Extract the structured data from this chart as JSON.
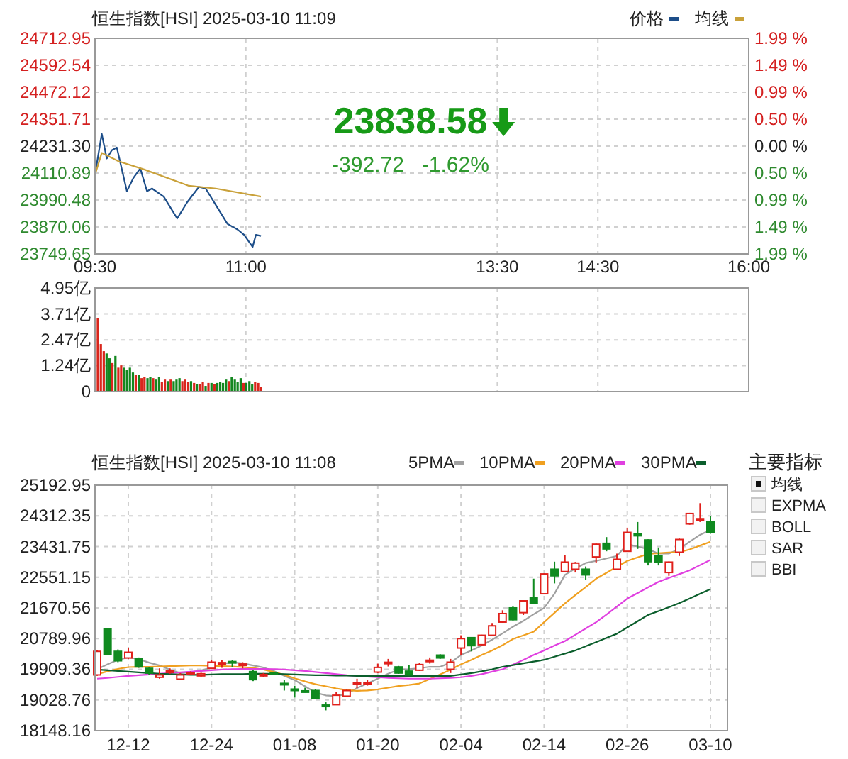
{
  "chart_data": [
    {
      "type": "line",
      "title": "恒生指数[HSI] 2025-03-10 11:09",
      "legend": "top right",
      "grid": true,
      "xlim": [
        9.5,
        16
      ],
      "xticks": [
        {
          "value": 9.5,
          "label": "09:30"
        },
        {
          "value": 11,
          "label": "11:00"
        },
        {
          "value": 13.5,
          "label": "13:30"
        },
        {
          "value": 14.5,
          "label": "14:30"
        },
        {
          "value": 16,
          "label": "16:00"
        }
      ],
      "ylim": [
        23749.65,
        24712.95
      ],
      "yticks": [
        23749.65,
        23870.06,
        23990.48,
        24110.89,
        {
          "value": 24231.3,
          "label": "24231.30"
        },
        24351.71,
        24472.12,
        24592.54,
        24712.95
      ],
      "y2lim": [
        -1.99,
        1.99
      ],
      "y2ticks": [
        {
          "value": -1.99,
          "label": "1.99 %"
        },
        {
          "value": -1.49,
          "label": "1.49 %"
        },
        {
          "value": -0.99,
          "label": "0.99 %"
        },
        {
          "value": -0.5,
          "label": "0.50 %"
        },
        {
          "value": 0,
          "label": "0.00 %"
        },
        {
          "value": 0.5,
          "label": "0.50 %"
        },
        {
          "value": 0.99,
          "label": "0.99 %"
        },
        {
          "value": 1.49,
          "label": "1.49 %"
        },
        {
          "value": 1.99,
          "label": "1.99 %"
        }
      ],
      "annotations": [
        "23838.58",
        "-392.72",
        "-1.62%"
      ],
      "series": [
        {
          "name": "价格",
          "color": "#1d4e89",
          "x": [
            9.5,
            9.567,
            9.617,
            9.667,
            9.717,
            9.817,
            9.883,
            9.95,
            10.017,
            10.067,
            10.183,
            10.317,
            10.417,
            10.533,
            10.6,
            10.717,
            10.817,
            10.917,
            10.983,
            11.067,
            11.1,
            11.15
          ],
          "values": [
            24103,
            24286,
            24176,
            24213,
            24225,
            24030,
            24090,
            24132,
            24030,
            24042,
            24006,
            23908,
            23981,
            24049,
            24042,
            23957,
            23884,
            23859,
            23835,
            23781,
            23835,
            23830
          ]
        },
        {
          "name": "均线",
          "color": "#c9a13a",
          "x": [
            9.5,
            9.567,
            9.733,
            9.983,
            10.433,
            10.7,
            11.15
          ],
          "values": [
            24103,
            24201,
            24164,
            24128,
            24054,
            24042,
            24006
          ]
        }
      ]
    },
    {
      "type": "bar",
      "grid": true,
      "tick_labels": "y",
      "xlim": [
        9.5,
        16
      ],
      "xticks": [
        9.5,
        11,
        13.5,
        14.5,
        16
      ],
      "ylim": [
        0,
        4.95
      ],
      "yticks": [
        0,
        {
          "value": 1.24,
          "label": "1.24亿"
        },
        {
          "value": 2.47,
          "label": "2.47亿"
        },
        {
          "value": 3.71,
          "label": "3.71亿"
        },
        {
          "value": 4.95,
          "label": "4.95亿"
        }
      ],
      "x": [
        9.5,
        9.528,
        9.558,
        9.587,
        9.615,
        9.645,
        9.673,
        9.703,
        9.732,
        9.76,
        9.79,
        9.818,
        9.847,
        9.877,
        9.905,
        9.935,
        9.963,
        9.992,
        10.022,
        10.05,
        10.078,
        10.108,
        10.137,
        10.165,
        10.195,
        10.223,
        10.253,
        10.282,
        10.31,
        10.34,
        10.368,
        10.397,
        10.427,
        10.455,
        10.485,
        10.513,
        10.542,
        10.572,
        10.6,
        10.628,
        10.658,
        10.687,
        10.717,
        10.745,
        10.773,
        10.803,
        10.832,
        10.86,
        10.89,
        10.918,
        10.948,
        10.977,
        11.005,
        11.035,
        11.063,
        11.092,
        11.122,
        11.15
      ],
      "values": [
        4.65,
        3.52,
        2.27,
        1.93,
        1.82,
        1.59,
        1.36,
        1.7,
        1.14,
        1.25,
        1.14,
        1.02,
        1.14,
        0.91,
        0.79,
        0.79,
        0.64,
        0.68,
        0.64,
        0.68,
        0.64,
        0.57,
        0.68,
        0.45,
        0.57,
        0.5,
        0.57,
        0.5,
        0.57,
        0.64,
        0.5,
        0.57,
        0.45,
        0.5,
        0.41,
        0.34,
        0.34,
        0.45,
        0.27,
        0.41,
        0.41,
        0.34,
        0.41,
        0.45,
        0.41,
        0.57,
        0.5,
        0.68,
        0.57,
        0.45,
        0.64,
        0.41,
        0.41,
        0.5,
        0.34,
        0.45,
        0.41,
        0.23
      ],
      "colors": [
        "#13871f",
        "#d9261c",
        "#d9261c",
        "#d9261c",
        "#13871f",
        "#13871f",
        "#d9261c",
        "#13871f",
        "#d9261c",
        "#d9261c",
        "#13871f",
        "#13871f",
        "#13871f",
        "#13871f",
        "#d9261c",
        "#13871f",
        "#d9261c",
        "#d9261c",
        "#13871f",
        "#13871f",
        "#d9261c",
        "#13871f",
        "#13871f",
        "#d9261c",
        "#d9261c",
        "#13871f",
        "#d9261c",
        "#13871f",
        "#13871f",
        "#13871f",
        "#d9261c",
        "#d9261c",
        "#d9261c",
        "#13871f",
        "#d9261c",
        "#13871f",
        "#d9261c",
        "#d9261c",
        "#13871f",
        "#d9261c",
        "#13871f",
        "#d9261c",
        "#13871f",
        "#13871f",
        "#13871f",
        "#13871f",
        "#d9261c",
        "#13871f",
        "#13871f",
        "#13871f",
        "#13871f",
        "#d9261c",
        "#13871f",
        "#13871f",
        "#13871f",
        "#d9261c",
        "#d9261c",
        "#d9261c"
      ]
    },
    {
      "type": "candlestick",
      "title": "恒生指数[HSI] 2025-03-10 11:08",
      "legend": "top right",
      "grid": true,
      "categories": [
        null,
        null,
        null,
        "12-12",
        null,
        null,
        null,
        null,
        null,
        null,
        null,
        "12-24",
        null,
        null,
        null,
        null,
        null,
        null,
        null,
        "01-08",
        null,
        null,
        null,
        null,
        null,
        null,
        null,
        "01-20",
        null,
        null,
        null,
        null,
        null,
        null,
        null,
        "02-04",
        null,
        null,
        null,
        null,
        null,
        null,
        null,
        "02-14",
        null,
        null,
        null,
        null,
        null,
        null,
        null,
        "02-26",
        null,
        null,
        null,
        null,
        null,
        null,
        null,
        "03-10"
      ],
      "ylim": [
        18148.16,
        25192.95
      ],
      "yticks": [
        18148.16,
        19028.76,
        19909.36,
        20789.96,
        21670.56,
        22551.15,
        23431.75,
        24312.35,
        25192.95
      ],
      "annotations": [
        "主要指标",
        "均线",
        "EXPMA",
        "BOLL",
        "SAR",
        "BBI"
      ],
      "ohlc": [
        [
          19747,
          20451,
          19720,
          20424
        ],
        [
          21061,
          21101,
          20316,
          20343
        ],
        [
          20424,
          20478,
          20113,
          20153
        ],
        [
          20234,
          20532,
          20207,
          20397
        ],
        [
          20207,
          20248,
          19950,
          19977
        ],
        [
          19936,
          19977,
          19747,
          19801
        ],
        [
          19679,
          19936,
          19638,
          19747
        ],
        [
          19840,
          19936,
          19774,
          19860
        ],
        [
          19625,
          19801,
          19597,
          19747
        ],
        [
          19790,
          19850,
          19760,
          19810
        ],
        [
          19720,
          19810,
          19700,
          19780
        ],
        [
          19936,
          20180,
          19936,
          20113
        ],
        [
          20070,
          20180,
          19950,
          20100
        ],
        [
          20130,
          20180,
          19977,
          20100
        ],
        [
          20040,
          20113,
          19936,
          20060
        ],
        [
          19842,
          19882,
          19570,
          19611
        ],
        [
          19720,
          19801,
          19680,
          19760
        ],
        [
          19800,
          19830,
          19740,
          19770
        ],
        [
          19503,
          19611,
          19299,
          19480
        ],
        [
          19340,
          19435,
          19096,
          19320
        ],
        [
          19290,
          19380,
          19240,
          19260
        ],
        [
          19299,
          19340,
          19055,
          19069
        ],
        [
          18880,
          18961,
          18730,
          18860
        ],
        [
          18893,
          19259,
          18893,
          19164
        ],
        [
          19137,
          19320,
          19120,
          19299
        ],
        [
          19490,
          19638,
          19367,
          19520
        ],
        [
          19500,
          19611,
          19440,
          19530
        ],
        [
          19828,
          20072,
          19800,
          19963
        ],
        [
          20080,
          20207,
          19990,
          20110
        ],
        [
          19977,
          20005,
          19780,
          19801
        ],
        [
          19855,
          20032,
          19730,
          19747
        ],
        [
          19882,
          20100,
          19860,
          20045
        ],
        [
          20140,
          20248,
          20072,
          20170
        ],
        [
          20316,
          20340,
          20210,
          20234
        ],
        [
          19909,
          20207,
          19801,
          20113
        ],
        [
          20519,
          20885,
          20316,
          20790
        ],
        [
          20817,
          20830,
          20424,
          20587
        ],
        [
          20614,
          20900,
          20590,
          20885
        ],
        [
          20885,
          21237,
          20860,
          21156
        ],
        [
          21264,
          21603,
          21250,
          21508
        ],
        [
          21671,
          21725,
          21310,
          21332
        ],
        [
          21535,
          21890,
          21467,
          21874
        ],
        [
          21969,
          22510,
          21780,
          21806
        ],
        [
          22077,
          22660,
          22060,
          22646
        ],
        [
          22781,
          22998,
          22375,
          22592
        ],
        [
          22714,
          23188,
          22700,
          22985
        ],
        [
          22781,
          22990,
          22687,
          22957
        ],
        [
          22781,
          22860,
          22483,
          22619
        ],
        [
          23134,
          23520,
          22957,
          23499
        ],
        [
          23526,
          23703,
          23296,
          23364
        ],
        [
          22781,
          23229,
          22770,
          23066
        ],
        [
          23296,
          23974,
          23280,
          23838
        ],
        [
          23790,
          24136,
          23364,
          23740
        ],
        [
          23621,
          23640,
          22890,
          22998
        ],
        [
          23161,
          23405,
          22890,
          22985
        ],
        [
          22687,
          23000,
          22592,
          22985
        ],
        [
          23269,
          23660,
          23161,
          23635
        ],
        [
          24082,
          24400,
          24060,
          24380
        ],
        [
          24220,
          24678,
          24136,
          24231
        ],
        [
          24150,
          24312,
          23798,
          23840
        ]
      ],
      "series": [
        {
          "type": "line",
          "name": "5PMA",
          "color": "#a0a0a0",
          "values": [
            19910,
            20050,
            20180,
            20250,
            20200,
            20100,
            20020,
            19900,
            19800,
            19820,
            19880,
            19960,
            20060,
            20110,
            20080,
            20020,
            19960,
            19860,
            19720,
            19600,
            19420,
            19240,
            19160,
            19140,
            19200,
            19370,
            19500,
            19640,
            19780,
            19900,
            19910,
            19940,
            19980,
            19980,
            20100,
            20320,
            20450,
            20590,
            20760,
            20940,
            21130,
            21300,
            21490,
            21670,
            22080,
            22620,
            22800,
            22960,
            23020,
            23090,
            23160,
            23500,
            23430,
            23360,
            23230,
            23230,
            23360,
            23570,
            23770,
            23910
          ]
        },
        {
          "type": "line",
          "name": "10PMA",
          "color": "#f0a020",
          "values": [
            19770,
            19850,
            19920,
            19970,
            19980,
            19980,
            19990,
            20000,
            20010,
            20020,
            20020,
            20010,
            20000,
            19990,
            19970,
            19950,
            19900,
            19830,
            19750,
            19650,
            19560,
            19480,
            19420,
            19360,
            19310,
            19290,
            19300,
            19330,
            19380,
            19430,
            19460,
            19500,
            19630,
            19760,
            19900,
            20050,
            20180,
            20320,
            20450,
            20600,
            20780,
            20880,
            20990,
            21260,
            21530,
            21800,
            22040,
            22270,
            22510,
            22680,
            22850,
            23020,
            23120,
            23220,
            23240,
            23260,
            23270,
            23350,
            23460,
            23570
          ]
        },
        {
          "type": "line",
          "name": "20PMA",
          "color": "#e040e0",
          "values": [
            19640,
            19660,
            19690,
            19720,
            19740,
            19760,
            19780,
            19800,
            19820,
            19840,
            19860,
            19880,
            19900,
            19910,
            19920,
            19920,
            19920,
            19910,
            19900,
            19880,
            19860,
            19830,
            19800,
            19770,
            19740,
            19720,
            19700,
            19680,
            19660,
            19650,
            19640,
            19640,
            19640,
            19650,
            19660,
            19680,
            19720,
            19770,
            19840,
            19910,
            20040,
            20180,
            20320,
            20450,
            20590,
            20720,
            20900,
            21080,
            21260,
            21480,
            21710,
            21940,
            22100,
            22260,
            22420,
            22530,
            22640,
            22750,
            22900,
            23050
          ]
        },
        {
          "type": "line",
          "name": "30PMA",
          "color": "#0b5e2c",
          "values": [
            19900,
            19880,
            19860,
            19840,
            19820,
            19800,
            19780,
            19770,
            19760,
            19750,
            19750,
            19760,
            19770,
            19770,
            19770,
            19780,
            19780,
            19780,
            19770,
            19760,
            19750,
            19740,
            19740,
            19730,
            19730,
            19720,
            19720,
            19720,
            19720,
            19720,
            19720,
            19720,
            19720,
            19720,
            19720,
            19760,
            19800,
            19850,
            19910,
            19980,
            20030,
            20080,
            20130,
            20180,
            20270,
            20360,
            20450,
            20570,
            20690,
            20810,
            20930,
            21110,
            21290,
            21470,
            21580,
            21690,
            21810,
            21940,
            22080,
            22210
          ]
        }
      ]
    }
  ]
}
